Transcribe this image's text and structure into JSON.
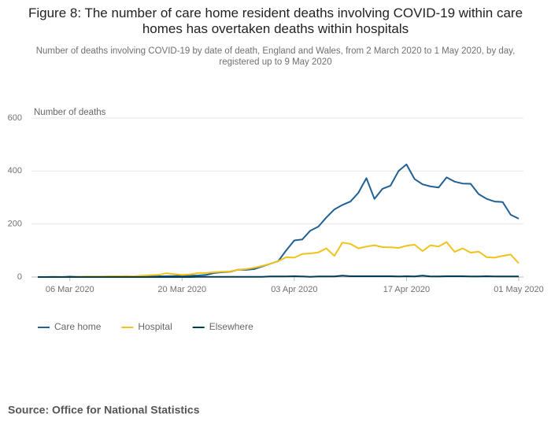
{
  "chart_data": {
    "type": "line",
    "title": "Figure 8: The number of care home resident deaths involving COVID-19 within care homes has overtaken deaths within hospitals",
    "subtitle": "Number of deaths involving COVID-19 by date of death, England and Wales, from 2 March 2020 to 1 May 2020, by day, registered up to 9 May 2020",
    "y_label": "Number of deaths",
    "source": "Source: Office for National Statistics",
    "x": [
      "2020-03-02",
      "2020-03-03",
      "2020-03-04",
      "2020-03-05",
      "2020-03-06",
      "2020-03-07",
      "2020-03-08",
      "2020-03-09",
      "2020-03-10",
      "2020-03-11",
      "2020-03-12",
      "2020-03-13",
      "2020-03-14",
      "2020-03-15",
      "2020-03-16",
      "2020-03-17",
      "2020-03-18",
      "2020-03-19",
      "2020-03-20",
      "2020-03-21",
      "2020-03-22",
      "2020-03-23",
      "2020-03-24",
      "2020-03-25",
      "2020-03-26",
      "2020-03-27",
      "2020-03-28",
      "2020-03-29",
      "2020-03-30",
      "2020-03-31",
      "2020-04-01",
      "2020-04-02",
      "2020-04-03",
      "2020-04-04",
      "2020-04-05",
      "2020-04-06",
      "2020-04-07",
      "2020-04-08",
      "2020-04-09",
      "2020-04-10",
      "2020-04-11",
      "2020-04-12",
      "2020-04-13",
      "2020-04-14",
      "2020-04-15",
      "2020-04-16",
      "2020-04-17",
      "2020-04-18",
      "2020-04-19",
      "2020-04-20",
      "2020-04-21",
      "2020-04-22",
      "2020-04-23",
      "2020-04-24",
      "2020-04-25",
      "2020-04-26",
      "2020-04-27",
      "2020-04-28",
      "2020-04-29",
      "2020-04-30",
      "2020-05-01"
    ],
    "series": [
      {
        "name": "Care home",
        "color": "#206095",
        "values": [
          0,
          0,
          1,
          0,
          2,
          1,
          0,
          0,
          1,
          1,
          2,
          1,
          2,
          3,
          2,
          3,
          3,
          4,
          5,
          5,
          6,
          8,
          15,
          18,
          20,
          28,
          27,
          30,
          40,
          50,
          60,
          101,
          138,
          142,
          175,
          190,
          225,
          255,
          272,
          285,
          318,
          373,
          295,
          333,
          345,
          400,
          425,
          370,
          350,
          342,
          338,
          376,
          360,
          353,
          352,
          313,
          295,
          285,
          283,
          235,
          220
        ]
      },
      {
        "name": "Hospital",
        "color": "#f0c21a",
        "values": [
          0,
          0,
          1,
          1,
          1,
          1,
          2,
          2,
          2,
          3,
          3,
          4,
          3,
          5,
          7,
          8,
          14,
          11,
          8,
          10,
          15,
          15,
          18,
          20,
          21,
          28,
          30,
          35,
          42,
          50,
          60,
          75,
          73,
          87,
          89,
          93,
          108,
          80,
          130,
          125,
          108,
          115,
          120,
          113,
          112,
          110,
          118,
          122,
          98,
          120,
          115,
          132,
          95,
          108,
          92,
          96,
          75,
          73,
          80,
          85,
          52
        ]
      },
      {
        "name": "Elsewhere",
        "color": "#003c57",
        "values": [
          0,
          0,
          0,
          0,
          0,
          0,
          0,
          0,
          0,
          0,
          0,
          0,
          0,
          0,
          0,
          0,
          0,
          0,
          0,
          0,
          1,
          1,
          1,
          1,
          1,
          1,
          1,
          1,
          1,
          2,
          2,
          2,
          3,
          2,
          1,
          2,
          2,
          2,
          5,
          3,
          3,
          3,
          3,
          3,
          3,
          2,
          3,
          2,
          5,
          2,
          2,
          3,
          3,
          3,
          2,
          2,
          3,
          2,
          2,
          2,
          2
        ]
      }
    ],
    "xlim": [
      "2020-03-02",
      "2020-05-01"
    ],
    "xticks": [
      {
        "value": "2020-03-06",
        "label": "06 Mar 2020"
      },
      {
        "value": "2020-03-20",
        "label": "20 Mar 2020"
      },
      {
        "value": "2020-04-03",
        "label": "03 Apr 2020"
      },
      {
        "value": "2020-04-17",
        "label": "17 Apr 2020"
      },
      {
        "value": "2020-05-01",
        "label": "01 May 2020"
      }
    ],
    "ylim": [
      0,
      600
    ],
    "yticks": [
      0,
      200,
      400,
      600
    ],
    "grid": true,
    "legend": "bottom-left"
  }
}
